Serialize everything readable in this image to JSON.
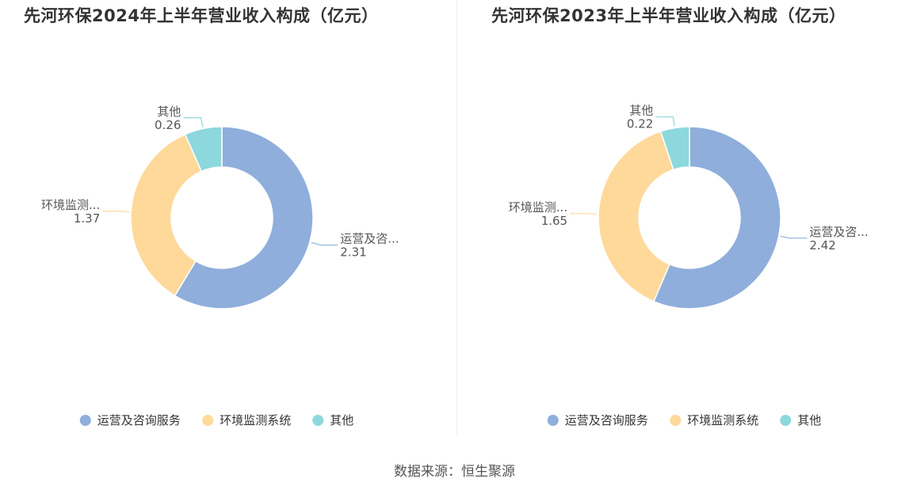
{
  "source": "数据来源：恒生聚源",
  "chart_data": [
    {
      "type": "pie",
      "title": "先河环保2024年上半年营业收入构成（亿元）",
      "labels": [
        "运营及咨询服务",
        "环境监测系统",
        "其他"
      ],
      "short_labels": [
        "运营及咨...",
        "环境监测...",
        "其他"
      ],
      "values": [
        2.31,
        1.37,
        0.26
      ],
      "value_labels": [
        "2.31",
        "1.37",
        "0.26"
      ],
      "colors": [
        "#8faedb",
        "#ffd99a",
        "#8dd8dc"
      ],
      "donut": true,
      "legend": "bottom"
    },
    {
      "type": "pie",
      "title": "先河环保2023年上半年营业收入构成（亿元）",
      "labels": [
        "运营及咨询服务",
        "环境监测系统",
        "其他"
      ],
      "short_labels": [
        "运营及咨...",
        "环境监测...",
        "其他"
      ],
      "values": [
        2.42,
        1.65,
        0.22
      ],
      "value_labels": [
        "2.42",
        "1.65",
        "0.22"
      ],
      "colors": [
        "#8faedb",
        "#ffd99a",
        "#8dd8dc"
      ],
      "donut": true,
      "legend": "bottom"
    }
  ]
}
